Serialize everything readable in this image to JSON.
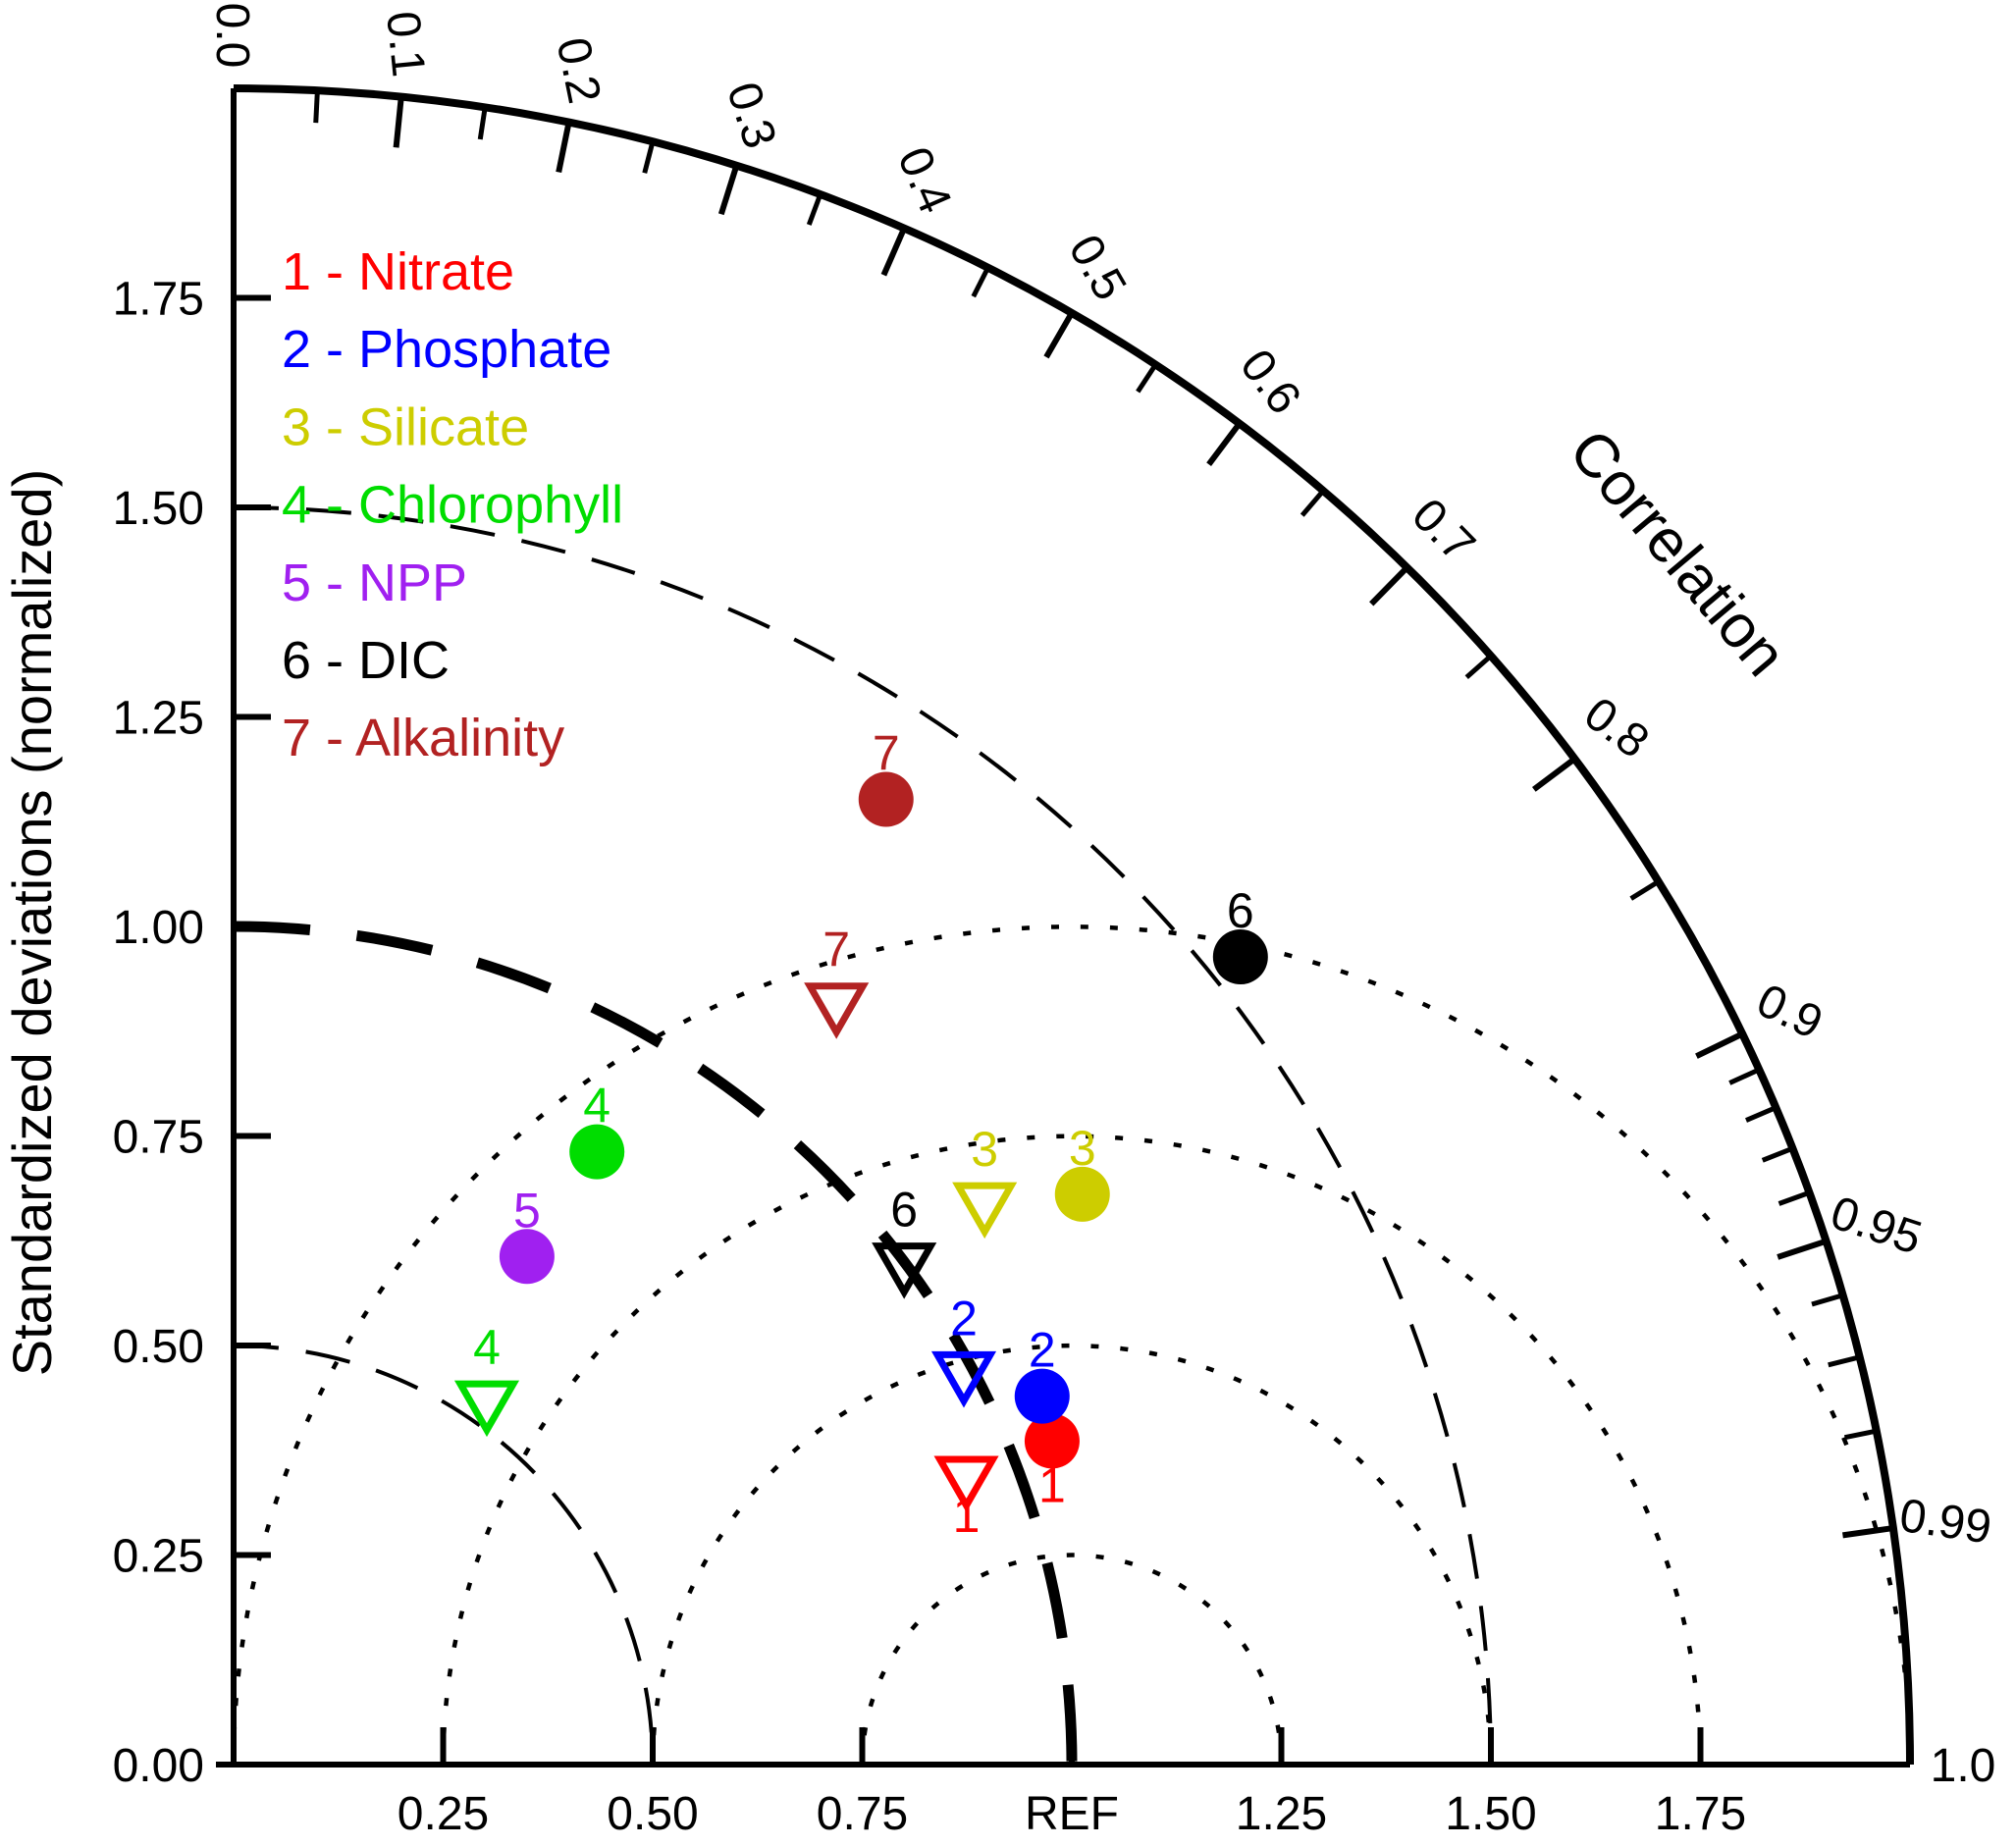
{
  "figure": {
    "background": "#ffffff"
  },
  "chart_data": {
    "type": "taylor_diagram",
    "radial_axis_label": "Standardized deviations (normalized)",
    "angular_axis_label": "Correlation",
    "std_max": 2.0,
    "ref_std": 1.0,
    "std_tick_labels": [
      "0.00",
      "0.25",
      "0.50",
      "0.75",
      "1.00",
      "1.25",
      "1.50",
      "1.75"
    ],
    "x_tick_labels": [
      "0.25",
      "0.50",
      "0.75",
      "REF",
      "1.25",
      "1.50",
      "1.75"
    ],
    "correlation_major_ticks": [
      0.0,
      0.1,
      0.2,
      0.3,
      0.4,
      0.5,
      0.6,
      0.7,
      0.8,
      0.9,
      0.95,
      0.99,
      1.0
    ],
    "correlation_tick_labels": [
      "0.0",
      "0.1",
      "0.2",
      "0.3",
      "0.4",
      "0.5",
      "0.6",
      "0.7",
      "0.8",
      "0.9",
      "0.95",
      "0.99",
      "1.0"
    ],
    "correlation_minor_ticks": [
      0.05,
      0.15,
      0.25,
      0.35,
      0.45,
      0.55,
      0.65,
      0.75,
      0.85,
      0.91,
      0.92,
      0.93,
      0.94,
      0.96,
      0.97,
      0.98
    ],
    "std_arcs_dashed": [
      0.5,
      1.0,
      1.5
    ],
    "bold_std_arc": 1.0,
    "rms_arcs_dotted_about_ref": [
      0.25,
      0.5,
      0.75,
      1.0
    ],
    "legend_separator": " - ",
    "series": [
      {
        "id": "1",
        "name": "Nitrate",
        "color": "#ff0000",
        "label_side": "below",
        "circle": {
          "std": 1.05,
          "corr": 0.93
        },
        "triangle": {
          "std": 0.94,
          "corr": 0.93
        }
      },
      {
        "id": "2",
        "name": "Phosphate",
        "color": "#0000ff",
        "label_side": "above",
        "circle": {
          "std": 1.06,
          "corr": 0.91
        },
        "triangle": {
          "std": 0.99,
          "corr": 0.88
        }
      },
      {
        "id": "3",
        "name": "Silicate",
        "color": "#cdcd00",
        "label_side": "above",
        "circle": {
          "std": 1.22,
          "corr": 0.83
        },
        "triangle": {
          "std": 1.12,
          "corr": 0.8
        }
      },
      {
        "id": "4",
        "name": "Chlorophyll",
        "color": "#00dd00",
        "label_side": "above",
        "circle": {
          "std": 0.85,
          "corr": 0.51
        },
        "triangle": {
          "std": 0.53,
          "corr": 0.57
        }
      },
      {
        "id": "5",
        "name": "NPP",
        "color": "#a020f0",
        "label_side": "above",
        "circle": {
          "std": 0.7,
          "corr": 0.5
        },
        "triangle": null
      },
      {
        "id": "6",
        "name": "DIC",
        "color": "#000000",
        "label_side": "above",
        "circle": {
          "std": 1.54,
          "corr": 0.78
        },
        "triangle": {
          "std": 1.0,
          "corr": 0.8
        }
      },
      {
        "id": "7",
        "name": "Alkalinity",
        "color": "#b22222",
        "label_side": "above",
        "circle": {
          "std": 1.39,
          "corr": 0.56
        },
        "triangle": {
          "std": 1.16,
          "corr": 0.62
        }
      }
    ]
  }
}
